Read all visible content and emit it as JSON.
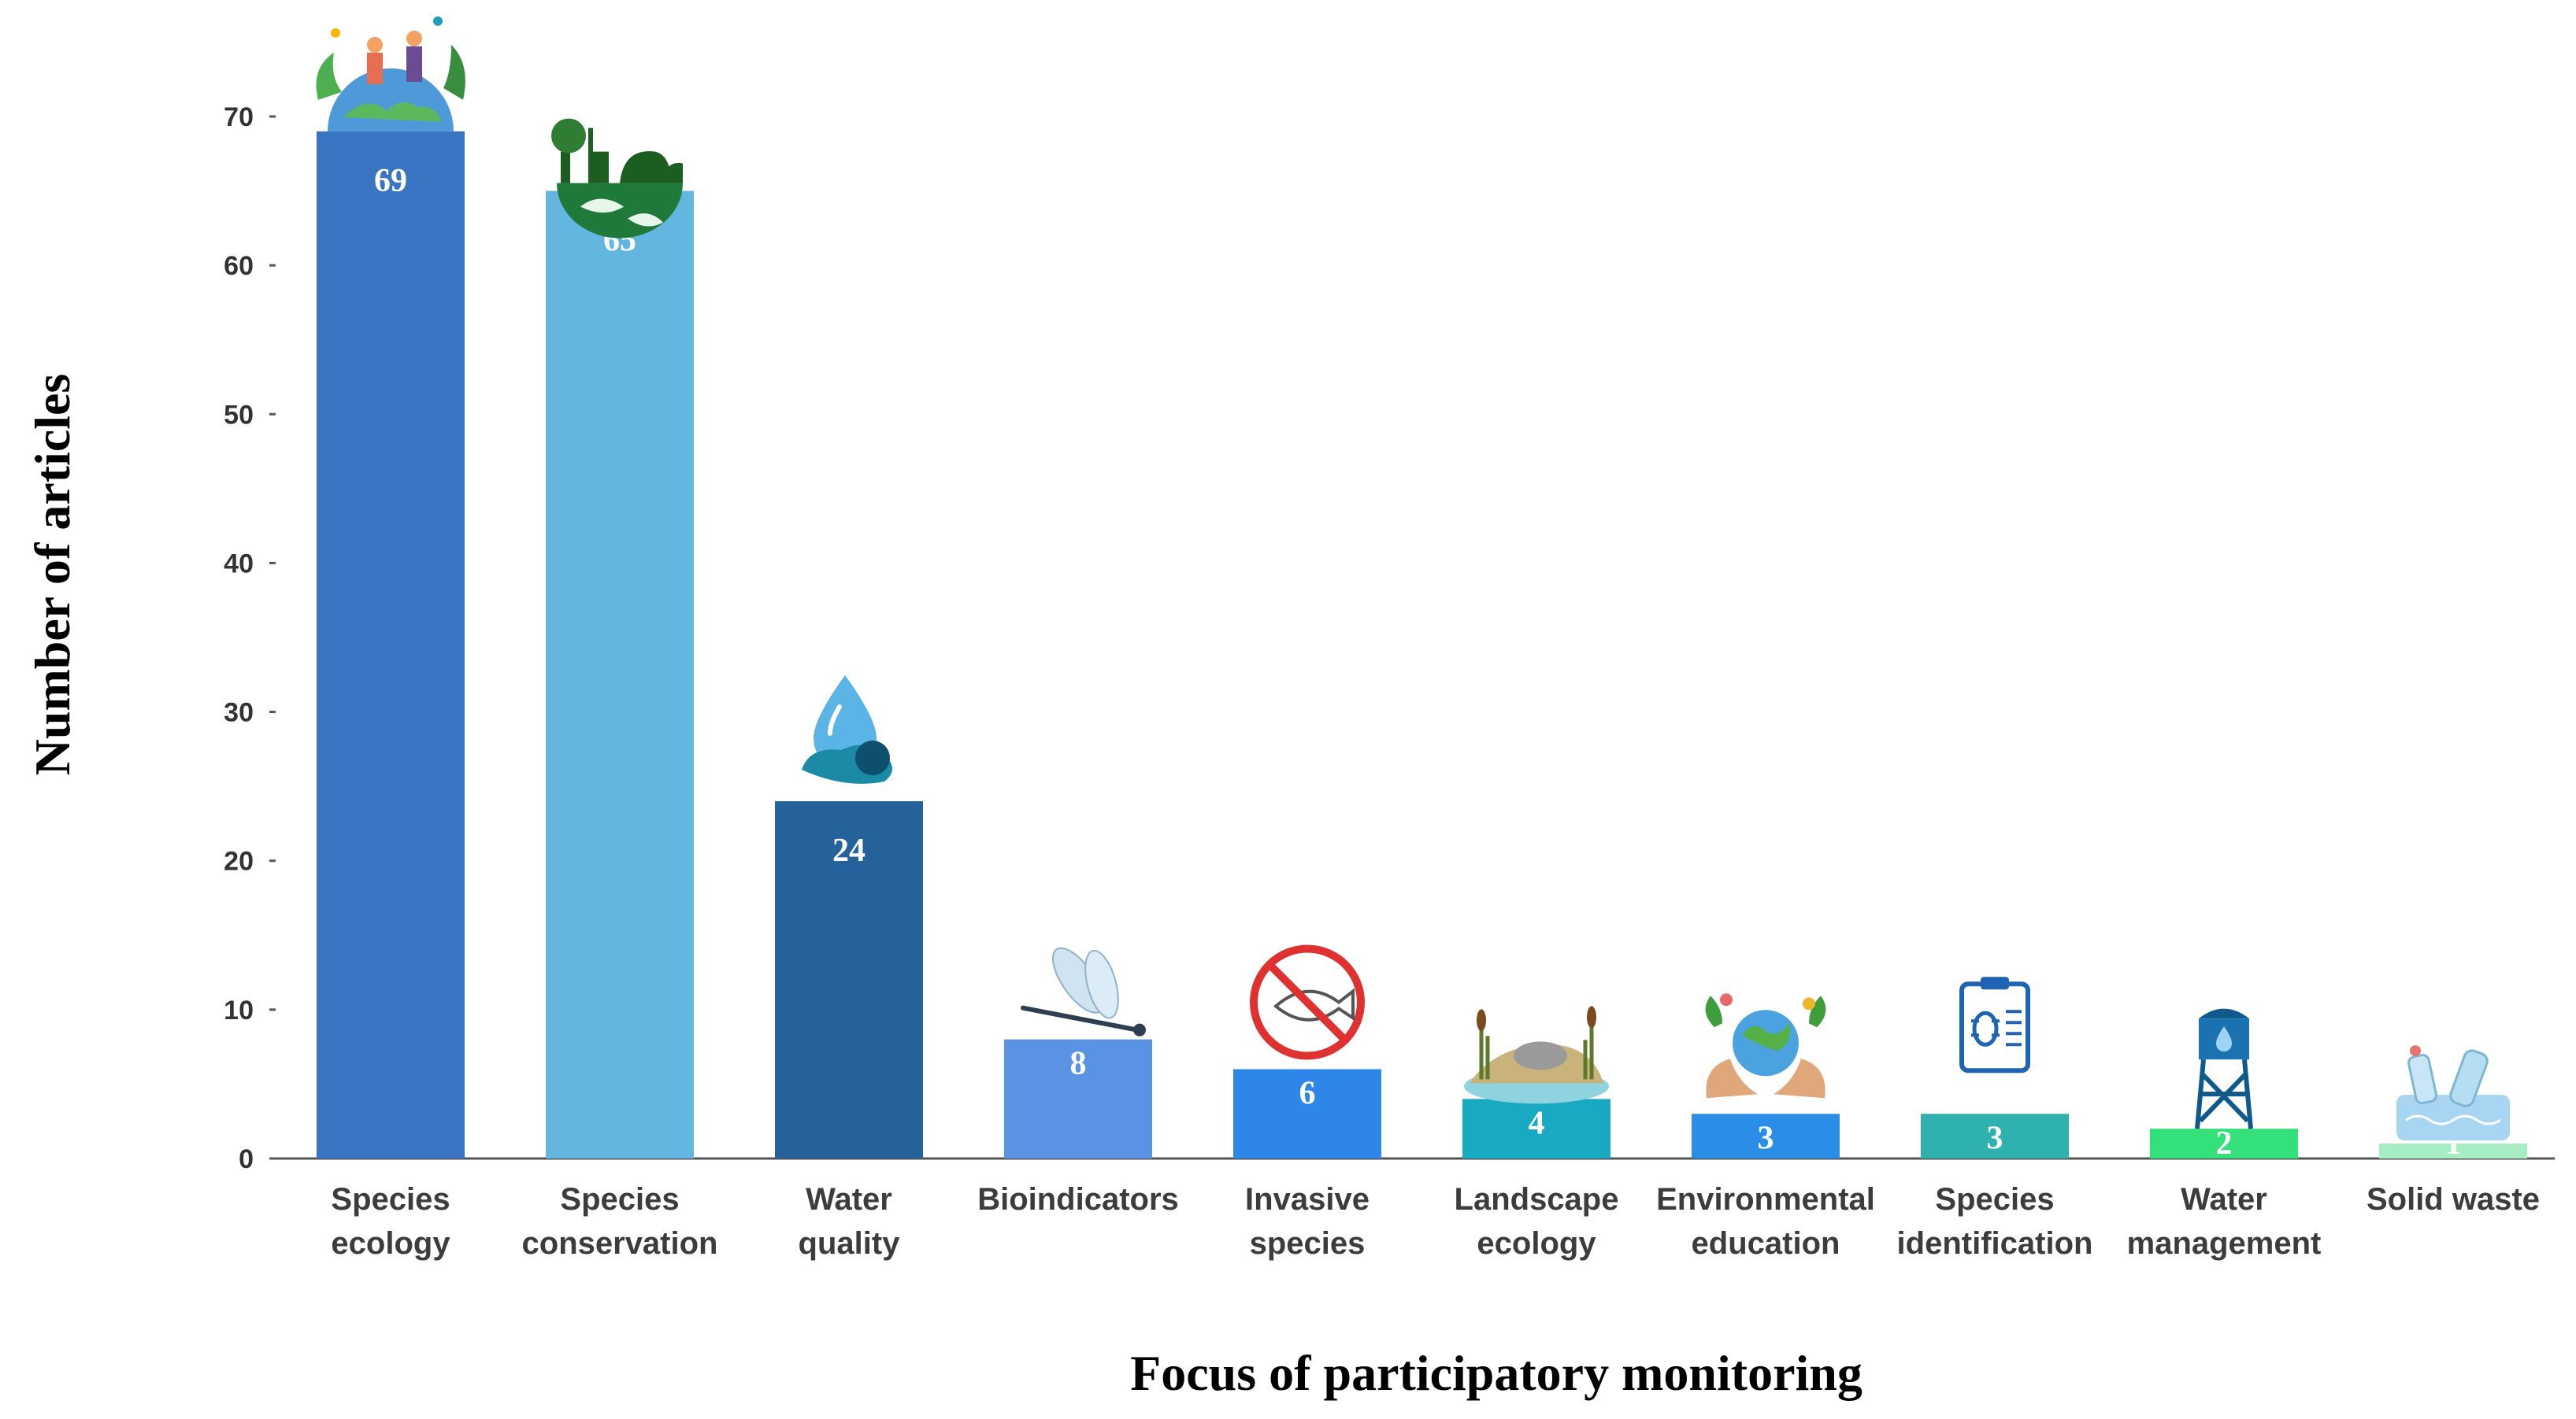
{
  "chart_data": {
    "type": "bar",
    "xlabel": "Focus of participatory monitoring",
    "ylabel": "Number of articles",
    "ylim": [
      0,
      70
    ],
    "yticks": [
      0,
      10,
      20,
      30,
      40,
      50,
      60,
      70
    ],
    "grid": false,
    "categories": [
      [
        "Species",
        "ecology"
      ],
      [
        "Species",
        "conservation"
      ],
      [
        "Water",
        "quality"
      ],
      [
        "Bioindicators"
      ],
      [
        "Invasive",
        "species"
      ],
      [
        "Landscape",
        "ecology"
      ],
      [
        "Environmental",
        "education"
      ],
      [
        "Species",
        "identification"
      ],
      [
        "Water",
        "management"
      ],
      [
        "Solid waste"
      ]
    ],
    "values": [
      69,
      65,
      24,
      8,
      6,
      4,
      3,
      3,
      2,
      1
    ],
    "colors": [
      "#3a75c4",
      "#62b6e0",
      "#25629b",
      "#5a93e3",
      "#2e86e8",
      "#19a9c2",
      "#2b8ee6",
      "#2fb1b0",
      "#33e07a",
      "#a6edc4"
    ],
    "icons": [
      "earth-people-icon",
      "wildlife-globe-icon",
      "water-drop-hand-icon",
      "dragonfly-icon",
      "no-invasive-fish-icon",
      "wetland-landscape-icon",
      "globe-hands-icon",
      "insect-clipboard-icon",
      "water-tower-icon",
      "plastic-waste-icon"
    ]
  }
}
